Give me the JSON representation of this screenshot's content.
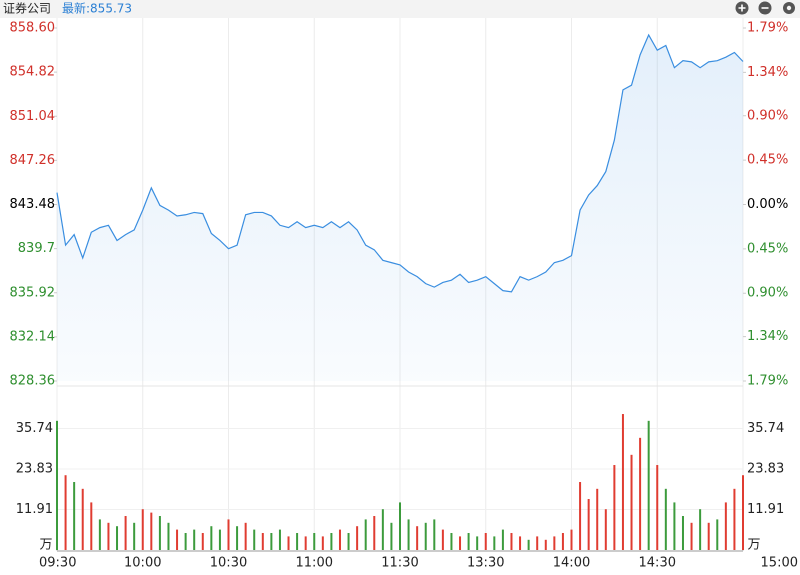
{
  "header": {
    "title": "证券公司",
    "latest": "最新:855.73"
  },
  "chart_data": {
    "type": "line",
    "x": [
      "09:30",
      "09:33",
      "09:36",
      "09:39",
      "09:42",
      "09:45",
      "09:48",
      "09:51",
      "09:54",
      "09:57",
      "10:00",
      "10:03",
      "10:06",
      "10:09",
      "10:12",
      "10:15",
      "10:18",
      "10:21",
      "10:24",
      "10:27",
      "10:30",
      "10:33",
      "10:36",
      "10:39",
      "10:42",
      "10:45",
      "10:48",
      "10:51",
      "10:54",
      "10:57",
      "11:00",
      "11:03",
      "11:06",
      "11:09",
      "11:12",
      "11:15",
      "11:18",
      "11:21",
      "11:24",
      "11:27",
      "11:30",
      "13:03",
      "13:06",
      "13:09",
      "13:12",
      "13:15",
      "13:18",
      "13:21",
      "13:24",
      "13:27",
      "13:30",
      "13:33",
      "13:36",
      "13:39",
      "13:42",
      "13:45",
      "13:48",
      "13:51",
      "13:54",
      "13:57",
      "14:00",
      "14:03",
      "14:06",
      "14:09",
      "14:12",
      "14:15",
      "14:18",
      "14:21",
      "14:24",
      "14:27",
      "14:30",
      "14:33",
      "14:36",
      "14:39",
      "14:42",
      "14:45",
      "14:48",
      "14:51",
      "14:54",
      "14:57",
      "15:00"
    ],
    "series": [
      {
        "color": "#3a8ee0",
        "values": [
          844.5,
          840.0,
          840.9,
          838.9,
          841.1,
          841.5,
          841.7,
          840.4,
          840.9,
          841.3,
          843.0,
          844.9,
          843.4,
          843.0,
          842.5,
          842.6,
          842.8,
          842.7,
          841.0,
          840.4,
          839.7,
          840.0,
          842.6,
          842.8,
          842.8,
          842.5,
          841.7,
          841.5,
          842.0,
          841.5,
          841.7,
          841.5,
          842.0,
          841.5,
          842.0,
          841.3,
          840.0,
          839.6,
          838.7,
          838.5,
          838.3,
          837.7,
          837.3,
          836.7,
          836.4,
          836.8,
          837.0,
          837.5,
          836.8,
          837.0,
          837.3,
          836.7,
          836.1,
          836.0,
          837.3,
          837.0,
          837.3,
          837.7,
          838.5,
          838.7,
          839.1,
          843.0,
          844.3,
          845.1,
          846.3,
          849.0,
          853.3,
          853.7,
          856.3,
          858.0,
          856.7,
          857.1,
          855.2,
          855.8,
          855.7,
          855.2,
          855.7,
          855.8,
          856.1,
          856.5,
          855.73
        ]
      }
    ],
    "volume": [
      38,
      22,
      20,
      18,
      14,
      9,
      8,
      7,
      10,
      8,
      12,
      11,
      10,
      8,
      6,
      5,
      6,
      5,
      7,
      6,
      9,
      7,
      8,
      6,
      5,
      5,
      6,
      4,
      5,
      4,
      5,
      4,
      5,
      6,
      5,
      7,
      9,
      10,
      12,
      8,
      14,
      9,
      7,
      8,
      9,
      6,
      5,
      4,
      5,
      4,
      5,
      4,
      6,
      5,
      4,
      3,
      4,
      3,
      4,
      5,
      6,
      20,
      15,
      18,
      12,
      25,
      40,
      28,
      33,
      38,
      25,
      18,
      14,
      10,
      8,
      12,
      8,
      9,
      14,
      18,
      22
    ],
    "bar_colors": [
      "#3c9b3c",
      "#e03c31",
      "#3c9b3c",
      "#e03c31",
      "#e03c31",
      "#3c9b3c",
      "#e03c31",
      "#3c9b3c",
      "#e03c31",
      "#3c9b3c",
      "#e03c31",
      "#e03c31",
      "#3c9b3c",
      "#3c9b3c",
      "#e03c31",
      "#3c9b3c",
      "#3c9b3c",
      "#e03c31",
      "#3c9b3c",
      "#3c9b3c",
      "#e03c31",
      "#3c9b3c",
      "#e03c31",
      "#3c9b3c",
      "#e03c31",
      "#3c9b3c",
      "#3c9b3c",
      "#e03c31",
      "#3c9b3c",
      "#e03c31",
      "#3c9b3c",
      "#e03c31",
      "#3c9b3c",
      "#e03c31",
      "#3c9b3c",
      "#e03c31",
      "#3c9b3c",
      "#e03c31",
      "#3c9b3c",
      "#3c9b3c",
      "#3c9b3c",
      "#3c9b3c",
      "#e03c31",
      "#3c9b3c",
      "#3c9b3c",
      "#e03c31",
      "#3c9b3c",
      "#e03c31",
      "#3c9b3c",
      "#3c9b3c",
      "#e03c31",
      "#3c9b3c",
      "#3c9b3c",
      "#e03c31",
      "#e03c31",
      "#3c9b3c",
      "#e03c31",
      "#e03c31",
      "#e03c31",
      "#e03c31",
      "#e03c31",
      "#e03c31",
      "#e03c31",
      "#e03c31",
      "#e03c31",
      "#e03c31",
      "#e03c31",
      "#e03c31",
      "#e03c31",
      "#3c9b3c",
      "#e03c31",
      "#3c9b3c",
      "#3c9b3c",
      "#3c9b3c",
      "#e03c31",
      "#3c9b3c",
      "#e03c31",
      "#3c9b3c",
      "#e03c31",
      "#e03c31",
      "#e03c31"
    ],
    "ylim": [
      828.36,
      858.6
    ],
    "yticks": [
      828.36,
      832.14,
      835.92,
      839.7,
      843.48,
      847.26,
      851.04,
      854.82,
      {
        "value": 858.6,
        "label": "858.60"
      }
    ],
    "y2lim": [
      -1.79,
      1.79
    ],
    "y2ticks": [
      {
        "value": -1.79,
        "label": "1.79%"
      },
      {
        "value": -1.34,
        "label": "1.34%"
      },
      {
        "value": -0.9,
        "label": "0.90%"
      },
      {
        "value": -0.45,
        "label": "0.45%"
      },
      {
        "value": 0,
        "label": "0.00%"
      },
      {
        "value": 0.45,
        "label": "0.45%"
      },
      {
        "value": 0.9,
        "label": "0.90%"
      },
      {
        "value": 1.34,
        "label": "1.34%"
      },
      {
        "value": 1.79,
        "label": "1.79%"
      }
    ],
    "vlim": [
      0,
      47.66
    ],
    "vticks": [
      11.91,
      23.83,
      35.74
    ],
    "vunit": "万",
    "xticks": [
      "09:30",
      "10:00",
      "10:30",
      "11:00",
      "11:30",
      "13:30",
      "14:00",
      "14:30",
      "15:00"
    ],
    "up_color": "#d0302a",
    "down_color": "#2f8f2f",
    "flat_color": "#000000"
  }
}
